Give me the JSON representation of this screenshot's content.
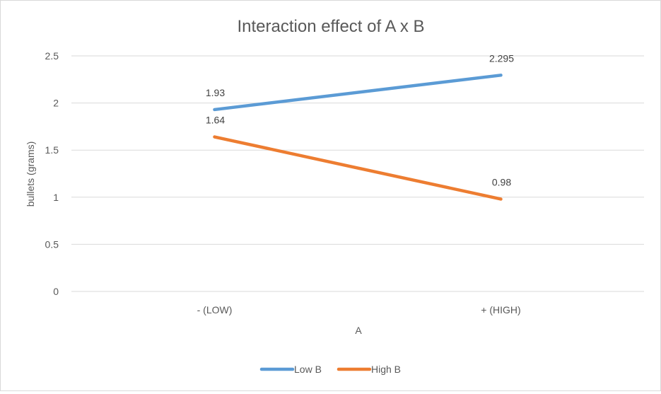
{
  "chart_data": {
    "type": "line",
    "title": "Interaction effect of A x B",
    "xlabel": "A",
    "ylabel": "bullets (grams)",
    "categories": [
      "- (LOW)",
      "+ (HIGH)"
    ],
    "ylim": [
      0,
      2.5
    ],
    "yticks": [
      "0",
      "0.5",
      "1",
      "1.5",
      "2",
      "2.5"
    ],
    "grid": true,
    "legend_position": "bottom",
    "series": [
      {
        "name": "Low B",
        "values": [
          1.93,
          2.295
        ],
        "labels": [
          "1.93",
          "2.295"
        ],
        "color": "#5b9bd5"
      },
      {
        "name": "High B",
        "values": [
          1.64,
          0.98
        ],
        "labels": [
          "1.64",
          "0.98"
        ],
        "color": "#ed7d31"
      }
    ]
  }
}
